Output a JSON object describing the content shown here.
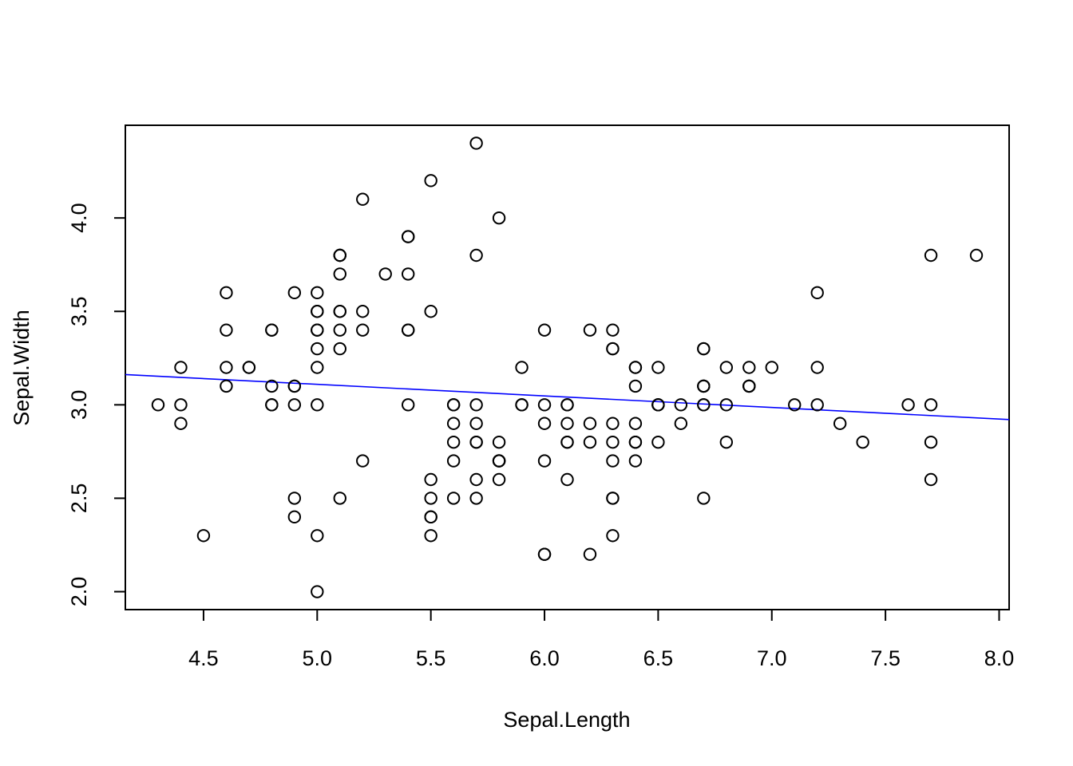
{
  "chart_data": {
    "type": "scatter",
    "xlabel": "Sepal.Length",
    "ylabel": "Sepal.Width",
    "xlim": [
      4.156,
      8.044
    ],
    "ylim": [
      1.904,
      4.496
    ],
    "xticks": [
      4.5,
      5.0,
      5.5,
      6.0,
      6.5,
      7.0,
      7.5,
      8.0
    ],
    "xtick_labels": [
      "4.5",
      "5.0",
      "5.5",
      "6.0",
      "6.5",
      "7.0",
      "7.5",
      "8.0"
    ],
    "yticks": [
      2.0,
      2.5,
      3.0,
      3.5,
      4.0
    ],
    "ytick_labels": [
      "2.0",
      "2.5",
      "3.0",
      "3.5",
      "4.0"
    ],
    "grid": false,
    "fit_line": {
      "color": "#0000ff",
      "intercept": 3.41895,
      "slope": -0.06188
    },
    "x": [
      5.1,
      4.9,
      4.7,
      4.6,
      5.0,
      5.4,
      4.6,
      5.0,
      4.4,
      4.9,
      5.4,
      4.8,
      4.8,
      4.3,
      5.8,
      5.7,
      5.4,
      5.1,
      5.7,
      5.1,
      5.4,
      5.1,
      4.6,
      5.1,
      4.8,
      5.0,
      5.0,
      5.2,
      5.2,
      4.7,
      4.8,
      5.4,
      5.2,
      5.5,
      4.9,
      5.0,
      5.5,
      4.9,
      4.4,
      5.1,
      5.0,
      4.5,
      4.4,
      5.0,
      5.1,
      4.8,
      5.1,
      4.6,
      5.3,
      5.0,
      7.0,
      6.4,
      6.9,
      5.5,
      6.5,
      5.7,
      6.3,
      4.9,
      6.6,
      5.2,
      5.0,
      5.9,
      6.0,
      6.1,
      5.6,
      6.7,
      5.6,
      5.8,
      6.2,
      5.6,
      5.9,
      6.1,
      6.3,
      6.1,
      6.4,
      6.6,
      6.8,
      6.7,
      6.0,
      5.7,
      5.5,
      5.5,
      5.8,
      6.0,
      5.4,
      6.0,
      6.7,
      6.3,
      5.6,
      5.5,
      5.5,
      6.1,
      5.8,
      5.0,
      5.6,
      5.7,
      5.7,
      6.2,
      5.1,
      5.7,
      6.3,
      5.8,
      7.1,
      6.3,
      6.5,
      7.6,
      4.9,
      7.3,
      6.7,
      7.2,
      6.5,
      6.4,
      6.8,
      5.7,
      5.8,
      6.4,
      6.5,
      7.7,
      7.7,
      6.0,
      6.9,
      5.6,
      7.7,
      6.3,
      6.7,
      7.2,
      6.2,
      6.1,
      6.4,
      7.2,
      7.4,
      7.9,
      6.4,
      6.3,
      6.1,
      7.7,
      6.3,
      6.4,
      6.0,
      6.9,
      6.7,
      6.9,
      5.8,
      6.8,
      6.7,
      6.7,
      6.3,
      6.5,
      6.2,
      5.9
    ],
    "y": [
      3.5,
      3.0,
      3.2,
      3.1,
      3.6,
      3.9,
      3.4,
      3.4,
      2.9,
      3.1,
      3.7,
      3.4,
      3.0,
      3.0,
      4.0,
      4.4,
      3.9,
      3.5,
      3.8,
      3.8,
      3.4,
      3.7,
      3.6,
      3.3,
      3.4,
      3.0,
      3.4,
      3.5,
      3.4,
      3.2,
      3.1,
      3.4,
      4.1,
      4.2,
      3.1,
      3.2,
      3.5,
      3.6,
      3.0,
      3.4,
      3.5,
      2.3,
      3.2,
      3.5,
      3.8,
      3.0,
      3.8,
      3.2,
      3.7,
      3.3,
      3.2,
      3.2,
      3.1,
      2.3,
      2.8,
      2.8,
      3.3,
      2.4,
      2.9,
      2.7,
      2.0,
      3.0,
      2.2,
      2.9,
      2.9,
      3.1,
      3.0,
      2.7,
      2.2,
      2.5,
      3.2,
      2.8,
      2.5,
      2.8,
      2.9,
      3.0,
      2.8,
      3.0,
      2.9,
      2.6,
      2.4,
      2.4,
      2.7,
      2.7,
      3.0,
      3.4,
      3.1,
      2.3,
      3.0,
      2.5,
      2.6,
      3.0,
      2.6,
      2.3,
      2.7,
      3.0,
      2.9,
      2.9,
      2.5,
      2.8,
      3.3,
      2.7,
      3.0,
      2.9,
      3.0,
      3.0,
      2.5,
      2.9,
      2.5,
      3.6,
      3.2,
      2.7,
      3.0,
      2.5,
      2.8,
      3.2,
      3.0,
      3.8,
      2.6,
      2.2,
      3.2,
      2.8,
      2.8,
      2.7,
      3.3,
      3.2,
      2.8,
      3.0,
      2.8,
      3.0,
      2.8,
      3.8,
      2.8,
      2.8,
      2.6,
      3.0,
      3.4,
      3.1,
      3.0,
      3.1,
      3.1,
      3.1,
      2.7,
      3.2,
      3.3,
      3.0,
      2.5,
      3.0,
      3.4,
      3.0
    ]
  }
}
